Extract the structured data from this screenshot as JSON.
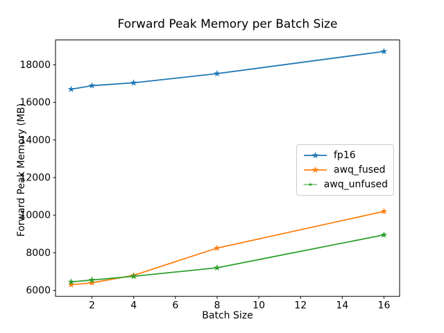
{
  "figure": {
    "background": "#ffffff"
  },
  "chart_data": {
    "type": "line",
    "title": "Forward Peak Memory per Batch Size",
    "xlabel": "Batch Size",
    "ylabel": "Forward Peak Memory (MB)",
    "x": [
      1,
      2,
      4,
      8,
      16
    ],
    "series": [
      {
        "name": "fp16",
        "color": "#1f77b4",
        "values": [
          16700,
          16890,
          17040,
          17530,
          18710
        ]
      },
      {
        "name": "awq_fused",
        "color": "#ff7f0e",
        "values": [
          6300,
          6400,
          6800,
          8250,
          10200
        ]
      },
      {
        "name": "awq_unfused",
        "color": "#2ca02c",
        "values": [
          6450,
          6550,
          6750,
          7200,
          8950
        ]
      }
    ],
    "marker": "star",
    "xticks": [
      2,
      4,
      6,
      8,
      10,
      12,
      14,
      16
    ],
    "yticks": [
      6000,
      8000,
      10000,
      12000,
      14000,
      16000,
      18000
    ],
    "xlim": [
      0.25,
      16.75
    ],
    "ylim": [
      5680,
      19320
    ],
    "grid": false,
    "legend_position": "center-right",
    "axis_color": "#000000",
    "tick_label_color": "#000000"
  }
}
